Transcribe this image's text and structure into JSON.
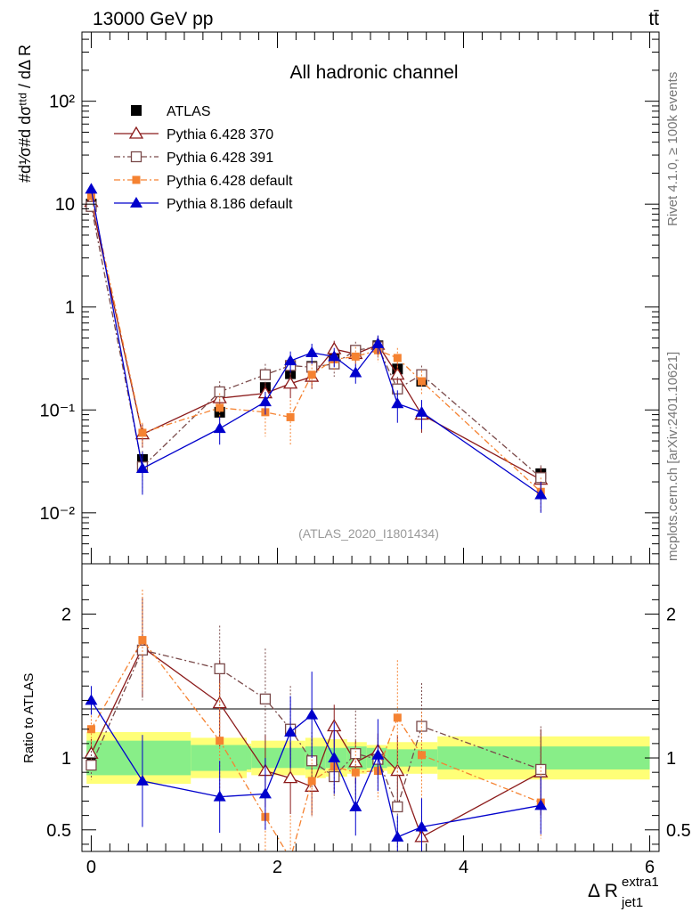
{
  "header": {
    "energy_label": "13000 GeV pp",
    "process_label": "tt̄",
    "channel_title": "All hadronic channel",
    "analysis_id": "(ATLAS_2020_I1801434)",
    "rivet_label": "Rivet 4.1.0, ≥ 100k events",
    "mcplots_label": "mcplots.cern.ch [arXiv:2401.10621]",
    "x_label_main": "Δ R",
    "x_label_sup": "extra1",
    "x_label_sub": "jet1",
    "y_label_main": "#d¹⁄σ#d dσᵗᵗᵈ / dΔ R",
    "ratio_ylabel": "Ratio to ATLAS"
  },
  "chart_data": {
    "type": "line",
    "title": "All hadronic channel",
    "xlabel": "Δ R jet1 extra1",
    "xlim": [
      -0.1,
      6.1
    ],
    "main": {
      "yscale": "log",
      "ylim": [
        0.0032,
        470
      ],
      "ytick_labels": [
        "10⁻²",
        "10⁻¹",
        "1",
        "10",
        "10²"
      ]
    },
    "ratio": {
      "ylabel": "Ratio to ATLAS",
      "ylim": [
        0.35,
        2.35
      ],
      "yticks": [
        0.5,
        1,
        2
      ],
      "ytick_labels": [
        "0.5",
        "1",
        "2"
      ],
      "band_edges": [
        -0.05,
        1.07,
        1.67,
        1.72,
        2.3,
        2.52,
        2.75,
        2.96,
        3.18,
        3.72,
        6.0
      ],
      "band_inner": [
        0.12,
        0.09,
        0.08,
        0.07,
        0.08,
        0.07,
        0.08,
        0.07,
        0.06,
        0.08
      ],
      "band_outer": [
        0.18,
        0.14,
        0.1,
        0.12,
        0.14,
        0.13,
        0.11,
        0.09,
        0.11,
        0.15
      ]
    },
    "xtick_labels": [
      "0",
      "2",
      "4",
      "6"
    ],
    "x": [
      0.0,
      0.55,
      1.38,
      1.87,
      2.14,
      2.37,
      2.61,
      2.84,
      3.08,
      3.29,
      3.55,
      4.83
    ],
    "series": [
      {
        "name": "ATLAS",
        "color": "#000000",
        "marker": "square-filled",
        "dash": "",
        "values": [
          10,
          0.033,
          0.095,
          0.165,
          0.225,
          0.265,
          0.33,
          0.37,
          0.42,
          0.25,
          0.19,
          0.024
        ]
      },
      {
        "name": "Pythia 6.428 370",
        "color": "#8b1a1a",
        "marker": "triangle-open",
        "dash": "",
        "values": [
          10.5,
          0.058,
          0.13,
          0.145,
          0.18,
          0.21,
          0.39,
          0.35,
          0.43,
          0.22,
          0.09,
          0.021
        ],
        "errors": [
          1.0,
          0.015,
          0.035,
          0.04,
          0.05,
          0.05,
          0.08,
          0.07,
          0.09,
          0.07,
          0.03,
          0.007
        ]
      },
      {
        "name": "Pythia 6.428 391",
        "color": "#7a4a4a",
        "marker": "square-open",
        "dash": "7,3,2,3",
        "values": [
          9.5,
          0.028,
          0.15,
          0.22,
          0.27,
          0.26,
          0.28,
          0.38,
          0.41,
          0.16,
          0.22,
          0.022
        ],
        "errors": [
          1.0,
          0.012,
          0.04,
          0.06,
          0.07,
          0.06,
          0.07,
          0.08,
          0.09,
          0.05,
          0.05,
          0.007
        ]
      },
      {
        "name": "Pythia 6.428 default",
        "color": "#f58231",
        "marker": "square-filled-small",
        "dash": "7,3,2,3",
        "values": [
          12,
          0.06,
          0.105,
          0.095,
          0.085,
          0.22,
          0.31,
          0.33,
          0.38,
          0.32,
          0.19,
          0.016
        ],
        "errors": [
          1.2,
          0.015,
          0.04,
          0.04,
          0.04,
          0.06,
          0.07,
          0.08,
          0.09,
          0.08,
          0.05,
          0.006
        ]
      },
      {
        "name": "Pythia 8.186 default",
        "color": "#0000cc",
        "marker": "triangle-filled",
        "dash": "",
        "values": [
          14,
          0.027,
          0.066,
          0.12,
          0.3,
          0.36,
          0.33,
          0.23,
          0.44,
          0.115,
          0.095,
          0.015
        ],
        "errors": [
          1.2,
          0.012,
          0.02,
          0.03,
          0.07,
          0.08,
          0.07,
          0.05,
          0.09,
          0.04,
          0.03,
          0.005
        ]
      }
    ],
    "ratio_series": [
      {
        "name": "Pythia 6.428 370",
        "values": [
          1.03,
          1.77,
          1.38,
          0.91,
          0.86,
          0.8,
          1.22,
          0.97,
          1.05,
          0.91,
          0.45,
          0.9
        ],
        "errors": [
          0.1,
          0.35,
          0.3,
          0.25,
          0.25,
          0.2,
          0.15,
          0.15,
          0.12,
          0.25,
          0.15,
          0.3
        ]
      },
      {
        "name": "Pythia 6.428 391",
        "values": [
          0.95,
          1.75,
          1.62,
          1.41,
          1.2,
          0.98,
          0.87,
          1.03,
          0.99,
          0.66,
          1.22,
          0.92
        ],
        "errors": [
          0.1,
          0.35,
          0.3,
          0.35,
          0.3,
          0.2,
          0.15,
          0.3,
          0.15,
          0.3,
          0.3,
          0.3
        ]
      },
      {
        "name": "Pythia 6.428 default",
        "values": [
          1.2,
          1.82,
          1.12,
          0.59,
          0.3,
          0.84,
          0.94,
          0.9,
          0.91,
          1.28,
          1.02,
          0.69
        ],
        "errors": [
          0.12,
          0.35,
          0.4,
          0.3,
          0.3,
          0.25,
          0.2,
          0.2,
          0.2,
          0.4,
          0.3,
          0.25
        ]
      },
      {
        "name": "Pythia 8.186 default",
        "values": [
          1.4,
          0.84,
          0.73,
          0.75,
          1.18,
          1.3,
          1.0,
          0.66,
          1.02,
          0.45,
          0.52,
          0.67
        ],
        "errors": [
          0.1,
          0.32,
          0.25,
          0.25,
          0.25,
          0.3,
          0.25,
          0.2,
          0.25,
          0.15,
          0.2,
          0.2
        ]
      }
    ]
  }
}
